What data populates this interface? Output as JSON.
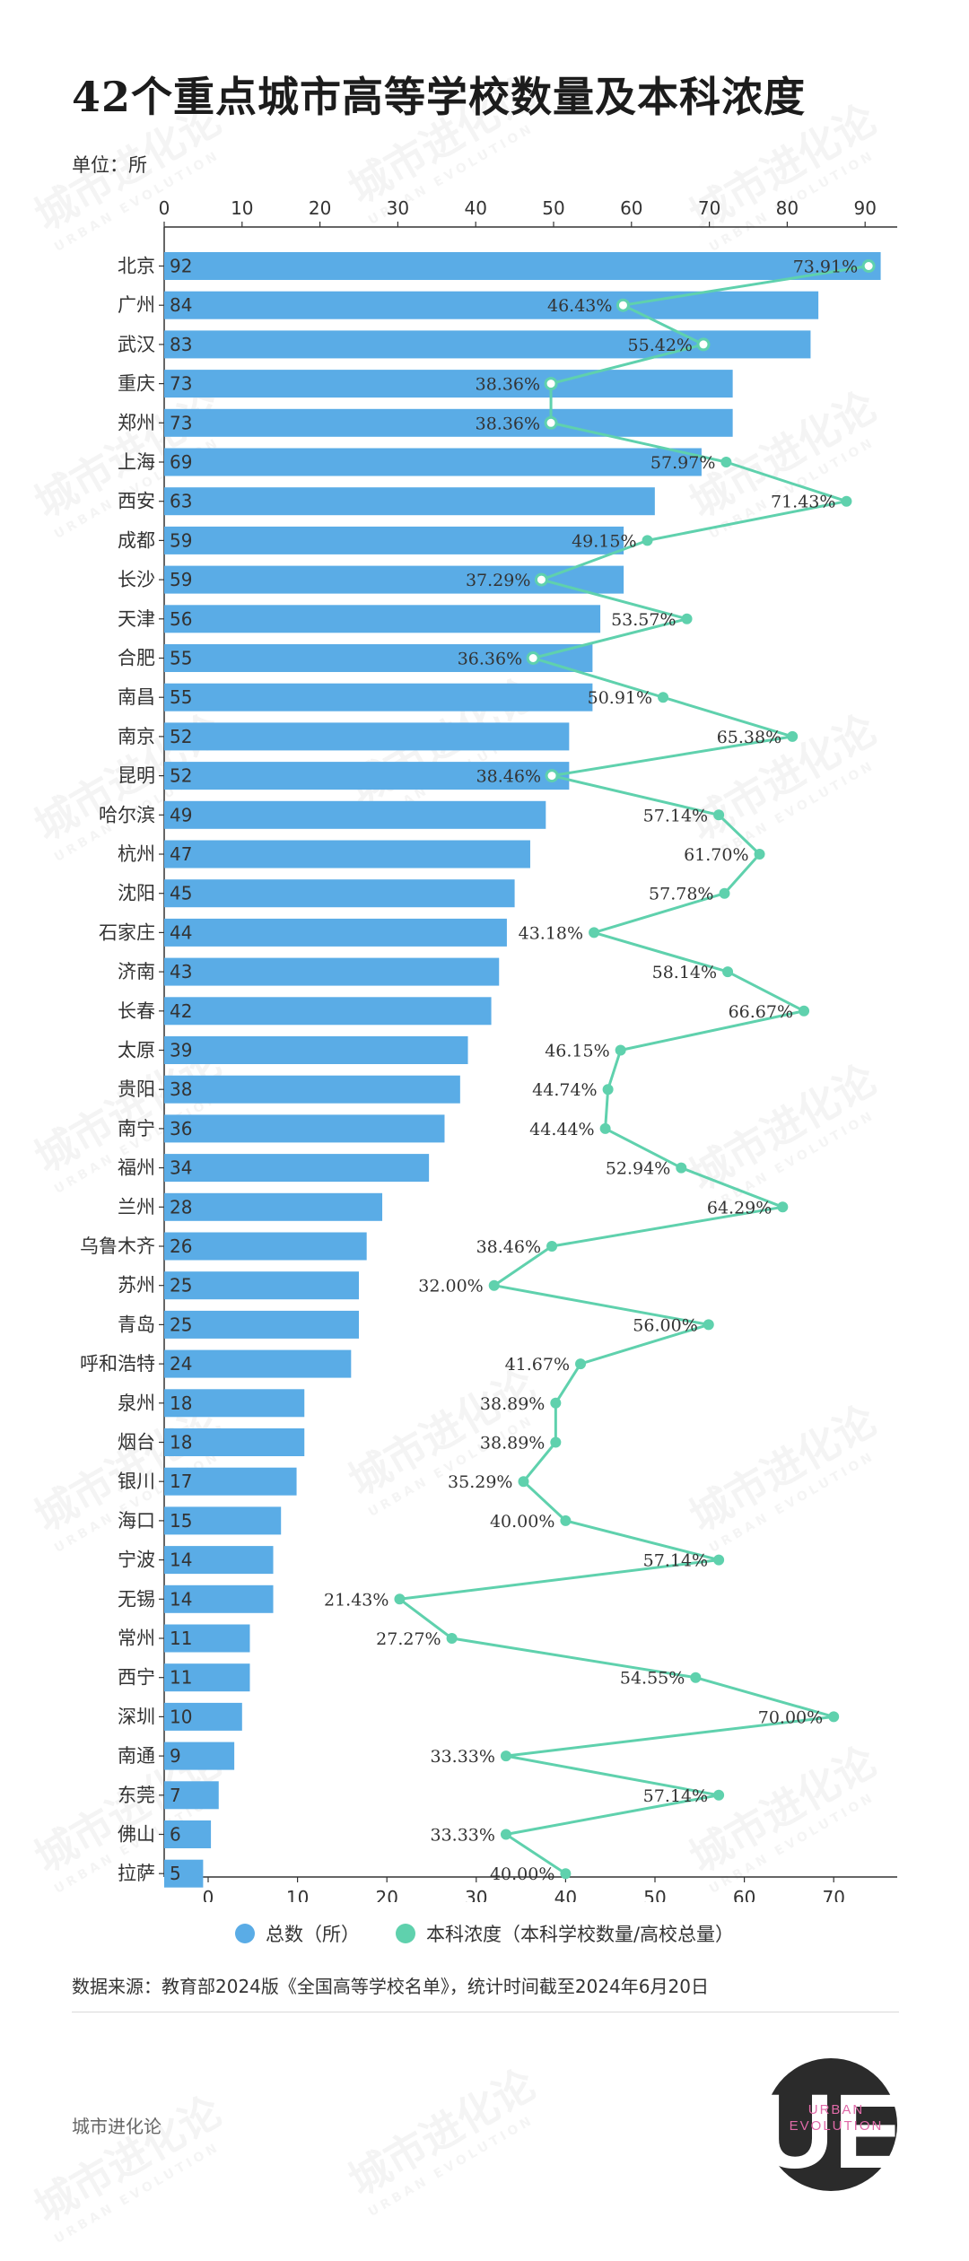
{
  "title": "42个重点城市高等学校数量及本科浓度",
  "unit": "单位：所",
  "legend": {
    "bar": "总数（所）",
    "line": "本科浓度（本科学校数量/高校总量）"
  },
  "source": "数据来源：教育部2024版《全国高等学校名单》，统计时间截至2024年6月20日",
  "brand": "城市进化论",
  "logo": {
    "big": "UE",
    "small": "URBAN\nEVOLUTION"
  },
  "watermark": {
    "cn": "城市进化论",
    "en": "URBAN EVOLUTION"
  },
  "colors": {
    "bar": "#5aace6",
    "line": "#5fd1ad",
    "text": "#333333",
    "logo_bg": "#2b2b2b"
  },
  "chart_data": {
    "type": "bar",
    "orientation": "horizontal",
    "categories": [
      "北京",
      "广州",
      "武汉",
      "重庆",
      "郑州",
      "上海",
      "西安",
      "成都",
      "长沙",
      "天津",
      "合肥",
      "南昌",
      "南京",
      "昆明",
      "哈尔滨",
      "杭州",
      "沈阳",
      "石家庄",
      "济南",
      "长春",
      "太原",
      "贵阳",
      "南宁",
      "福州",
      "兰州",
      "乌鲁木齐",
      "苏州",
      "青岛",
      "呼和浩特",
      "泉州",
      "烟台",
      "银川",
      "海口",
      "宁波",
      "无锡",
      "常州",
      "西宁",
      "深圳",
      "南通",
      "东莞",
      "佛山",
      "拉萨"
    ],
    "series": [
      {
        "name": "总数（所）",
        "type": "bar",
        "axis": "top",
        "values": [
          92,
          84,
          83,
          73,
          73,
          69,
          63,
          59,
          59,
          56,
          55,
          55,
          52,
          52,
          49,
          47,
          45,
          44,
          43,
          42,
          39,
          38,
          36,
          34,
          28,
          26,
          25,
          25,
          24,
          18,
          18,
          17,
          15,
          14,
          14,
          11,
          11,
          10,
          9,
          7,
          6,
          5
        ],
        "labels": [
          "92",
          "84",
          "83",
          "73",
          "73",
          "69",
          "63",
          "59",
          "59",
          "56",
          "55",
          "55",
          "52",
          "52",
          "49",
          "47",
          "45",
          "44",
          "43",
          "42",
          "39",
          "38",
          "36",
          "34",
          "28",
          "26",
          "25",
          "25",
          "24",
          "18",
          "18",
          "17",
          "15",
          "14",
          "14",
          "11",
          "11",
          "10",
          "9",
          "7",
          "6",
          "5"
        ]
      },
      {
        "name": "本科浓度（本科学校数量/高校总量）",
        "type": "line",
        "axis": "bottom",
        "values": [
          73.91,
          46.43,
          55.42,
          38.36,
          38.36,
          57.97,
          71.43,
          49.15,
          37.29,
          53.57,
          36.36,
          50.91,
          65.38,
          38.46,
          57.14,
          61.7,
          57.78,
          43.18,
          58.14,
          66.67,
          46.15,
          44.74,
          44.44,
          52.94,
          64.29,
          38.46,
          32.0,
          56.0,
          41.67,
          38.89,
          38.89,
          35.29,
          40.0,
          57.14,
          21.43,
          27.27,
          54.55,
          70.0,
          33.33,
          57.14,
          33.33,
          40.0
        ],
        "labels": [
          "73.91%",
          "46.43%",
          "55.42%",
          "38.36%",
          "38.36%",
          "57.97%",
          "71.43%",
          "49.15%",
          "37.29%",
          "53.57%",
          "36.36%",
          "50.91%",
          "65.38%",
          "38.46%",
          "57.14%",
          "61.70%",
          "57.78%",
          "43.18%",
          "58.14%",
          "66.67%",
          "46.15%",
          "44.74%",
          "44.44%",
          "52.94%",
          "64.29%",
          "38.46%",
          "32.00%",
          "56.00%",
          "41.67%",
          "38.89%",
          "38.89%",
          "35.29%",
          "40.00%",
          "57.14%",
          "21.43%",
          "27.27%",
          "54.55%",
          "70.00%",
          "33.33%",
          "57.14%",
          "33.33%",
          "40.00%"
        ]
      }
    ],
    "top_axis": {
      "ticks": [
        "0",
        "10",
        "20",
        "30",
        "40",
        "50",
        "60",
        "70",
        "80",
        "90"
      ],
      "range": [
        0,
        96
      ]
    },
    "bottom_axis": {
      "ticks": [
        "0",
        "10",
        "20",
        "30",
        "40",
        "50",
        "60",
        "70"
      ],
      "range": [
        -5,
        78
      ]
    },
    "grid": false,
    "legend_position": "bottom-center"
  }
}
